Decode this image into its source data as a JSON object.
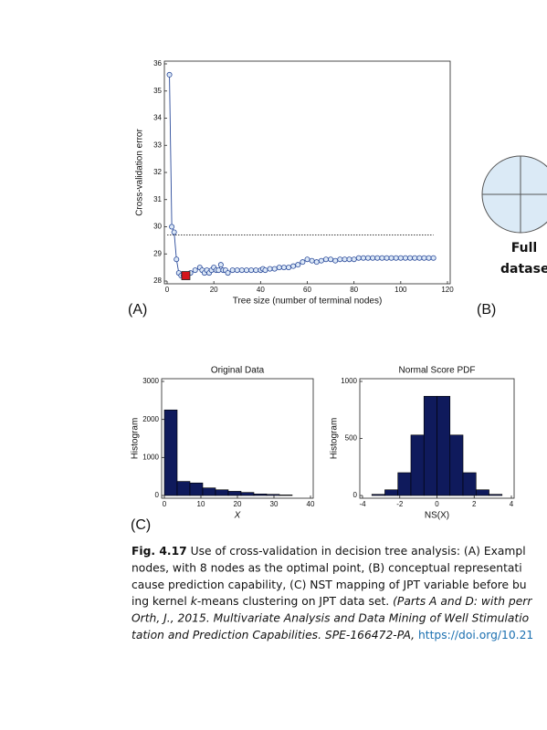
{
  "chart_data": [
    {
      "type": "line",
      "xlabel": "Tree size (number of terminal nodes)",
      "ylabel": "Cross-validation error",
      "xlim": [
        0,
        120
      ],
      "ylim": [
        28,
        36
      ],
      "xticks": [
        0,
        20,
        40,
        60,
        80,
        100,
        120
      ],
      "yticks": [
        28,
        29,
        30,
        31,
        32,
        33,
        34,
        35,
        36
      ],
      "color": "#2a4a9a",
      "marker_fill": "#dce8f7",
      "x": [
        1,
        2,
        3,
        4,
        5,
        6,
        7,
        8,
        10,
        12,
        14,
        15,
        16,
        17,
        18,
        19,
        20,
        21,
        22,
        23,
        24,
        25,
        26,
        28,
        30,
        32,
        34,
        36,
        38,
        40,
        41,
        42,
        44,
        46,
        48,
        50,
        52,
        54,
        56,
        58,
        60,
        62,
        64,
        66,
        68,
        70,
        72,
        74,
        76,
        78,
        80,
        82,
        84,
        86,
        88,
        90,
        92,
        94,
        96,
        98,
        100,
        102,
        104,
        106,
        108,
        110,
        112,
        114
      ],
      "values": [
        35.6,
        30.0,
        29.8,
        28.8,
        28.3,
        28.2,
        28.2,
        28.2,
        28.3,
        28.4,
        28.5,
        28.4,
        28.3,
        28.4,
        28.3,
        28.4,
        28.5,
        28.4,
        28.4,
        28.6,
        28.4,
        28.4,
        28.3,
        28.4,
        28.4,
        28.4,
        28.4,
        28.4,
        28.4,
        28.4,
        28.45,
        28.4,
        28.45,
        28.45,
        28.5,
        28.5,
        28.5,
        28.55,
        28.6,
        28.7,
        28.8,
        28.75,
        28.7,
        28.75,
        28.8,
        28.8,
        28.75,
        28.8,
        28.8,
        28.8,
        28.8,
        28.85,
        28.85,
        28.85,
        28.85,
        28.85,
        28.85,
        28.85,
        28.85,
        28.85,
        28.85,
        28.85,
        28.85,
        28.85,
        28.85,
        28.85,
        28.85,
        28.85
      ],
      "reference_line": {
        "y": 29.7,
        "x": [
          0,
          114
        ]
      },
      "optimal": {
        "x": 8,
        "y": 28.2,
        "color": "#d4141c"
      }
    },
    {
      "type": "histogram",
      "title": "Original Data",
      "xlabel": "X",
      "ylabel": "Histogram",
      "xlim": [
        0,
        40
      ],
      "ylim": [
        0,
        3000
      ],
      "xticks": [
        0,
        10,
        20,
        30,
        40
      ],
      "yticks": [
        0,
        1000,
        2000,
        3000
      ],
      "color": "#0f1a5c",
      "bins": [
        0,
        3.5,
        7,
        10.5,
        14,
        17.5,
        21,
        24.5,
        28,
        31.5,
        35
      ],
      "values": [
        2250,
        370,
        330,
        200,
        150,
        110,
        80,
        40,
        30,
        15
      ]
    },
    {
      "type": "histogram",
      "title": "Normal Score PDF",
      "xlabel": "NS(X)",
      "ylabel": "Histogram",
      "xlim": [
        -4,
        4
      ],
      "ylim": [
        0,
        1000
      ],
      "xticks": [
        -4,
        -2,
        0,
        2,
        4
      ],
      "yticks": [
        0,
        500,
        1000
      ],
      "color": "#0f1a5c",
      "bins": [
        -3.5,
        -2.8,
        -2.1,
        -1.4,
        -0.7,
        0,
        0.7,
        1.4,
        2.1,
        2.8,
        3.5
      ],
      "values": [
        10,
        50,
        200,
        530,
        870,
        870,
        530,
        200,
        50,
        10
      ]
    }
  ],
  "panel_labels": [
    "(A)",
    "(B)",
    "(C)"
  ],
  "circle_label": [
    "Full",
    "dataset"
  ],
  "caption": {
    "lines": [
      [
        {
          "text": "Fig. 4.17",
          "style": "bold"
        },
        {
          "text": "  Use of cross-validation in decision tree analysis: (A) Exampl",
          "style": "normal"
        }
      ],
      [
        {
          "text": "nodes, with 8 nodes as the optimal point, (B) conceptual representati",
          "style": "normal"
        }
      ],
      [
        {
          "text": "cause prediction capability, (C) NST mapping of JPT variable before bu",
          "style": "normal"
        }
      ],
      [
        {
          "text": "ing kernel ",
          "style": "normal"
        },
        {
          "text": "k",
          "style": "italic"
        },
        {
          "text": "-means clustering on JPT data set. ",
          "style": "normal"
        },
        {
          "text": "(Parts A and D: with perr",
          "style": "italic"
        }
      ],
      [
        {
          "text": "Orth, J., 2015. Multivariate Analysis and Data Mining of Well Stimulatio",
          "style": "italic"
        }
      ],
      [
        {
          "text": "tation and Prediction Capabilities. SPE-166472-PA, ",
          "style": "italic"
        },
        {
          "text": "https://doi.org/10.21",
          "style": "link"
        }
      ]
    ]
  }
}
